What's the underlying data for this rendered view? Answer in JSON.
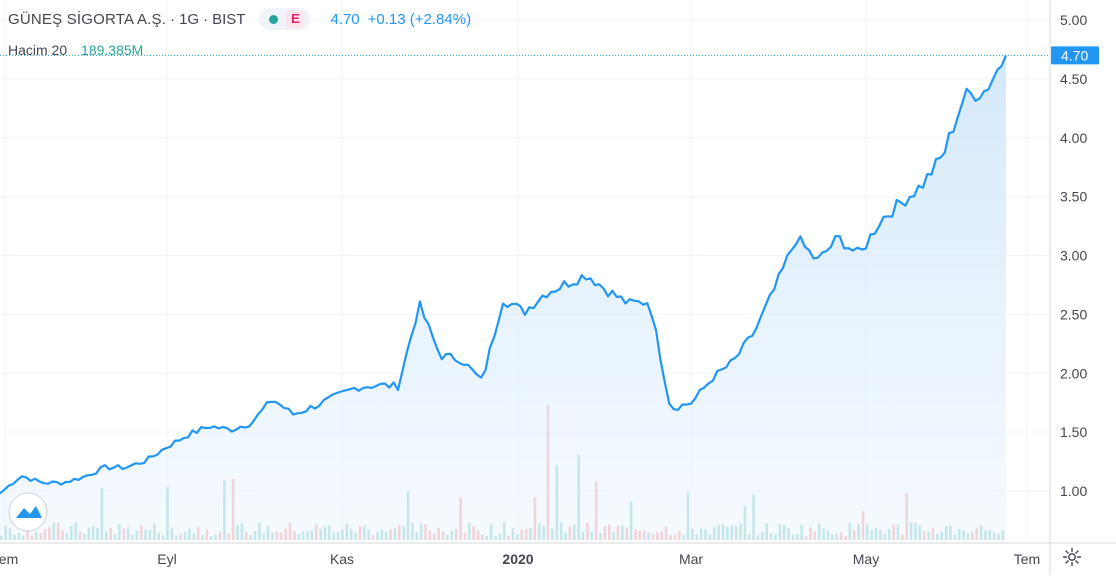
{
  "header": {
    "symbol": "GÜNEŞ SİGORTA A.Ş.",
    "interval": "1G",
    "exchange": "BIST",
    "market_badge": "E",
    "last_price": "4.70",
    "change": "+0.13 (+2.84%)"
  },
  "volume_legend": {
    "label": "Hacim 20",
    "value": "189.385M"
  },
  "colors": {
    "line": "#2196f3",
    "area_top": "#cfe6fb",
    "area_bottom": "#eef6fe",
    "volume_up": "#26a69a",
    "volume_down": "#ef5350",
    "grid": "#f0f3fa",
    "axis_text": "#434651"
  },
  "icons": [
    "tradingview-logo-icon",
    "settings-gear-icon",
    "market-status-dot-icon"
  ],
  "chart_data": {
    "type": "area",
    "ylabel": "",
    "xlabel": "",
    "ylim": [
      0.62,
      5.1
    ],
    "y_ticks": [
      "5.00",
      "4.50",
      "4.00",
      "3.50",
      "3.00",
      "2.50",
      "2.00",
      "1.50",
      "1.00"
    ],
    "x_ticks": [
      "Tem",
      "Eyl",
      "Kas",
      "2020",
      "Mar",
      "May",
      "Tem"
    ],
    "last_value_label": "4.70",
    "grid": true,
    "series": [
      {
        "name": "GÜNEŞ SİGORTA A.Ş.",
        "x": [
          "2019-07-01",
          "2019-07-08",
          "2019-07-15",
          "2019-07-22",
          "2019-07-29",
          "2019-08-05",
          "2019-08-12",
          "2019-08-19",
          "2019-08-26",
          "2019-09-02",
          "2019-09-09",
          "2019-09-16",
          "2019-09-23",
          "2019-09-30",
          "2019-10-07",
          "2019-10-14",
          "2019-10-21",
          "2019-10-28",
          "2019-11-04",
          "2019-11-11",
          "2019-11-18",
          "2019-11-25",
          "2019-12-02",
          "2019-12-09",
          "2019-12-16",
          "2019-12-23",
          "2019-12-30",
          "2020-01-06",
          "2020-01-13",
          "2020-01-20",
          "2020-01-27",
          "2020-02-03",
          "2020-02-10",
          "2020-02-17",
          "2020-02-24",
          "2020-03-02",
          "2020-03-09",
          "2020-03-16",
          "2020-03-23",
          "2020-03-30",
          "2020-04-06",
          "2020-04-13",
          "2020-04-20",
          "2020-04-27",
          "2020-05-04",
          "2020-05-11",
          "2020-05-18",
          "2020-05-25",
          "2020-06-01",
          "2020-06-08",
          "2020-06-15",
          "2020-06-22",
          "2020-06-29"
        ],
        "values": [
          0.98,
          1.13,
          1.07,
          1.07,
          1.12,
          1.2,
          1.2,
          1.26,
          1.38,
          1.48,
          1.55,
          1.52,
          1.58,
          1.78,
          1.65,
          1.72,
          1.8,
          1.88,
          1.9,
          1.89,
          2.58,
          2.15,
          2.12,
          1.93,
          2.63,
          2.52,
          2.68,
          2.76,
          2.84,
          2.7,
          2.59,
          2.61,
          1.7,
          1.75,
          1.96,
          2.1,
          2.35,
          2.73,
          3.15,
          2.95,
          3.15,
          3.0,
          3.3,
          3.45,
          3.6,
          3.85,
          4.35,
          4.4,
          4.7,
          4.7,
          4.7,
          4.7,
          4.7
        ],
        "volume_unit": "relative"
      }
    ]
  }
}
